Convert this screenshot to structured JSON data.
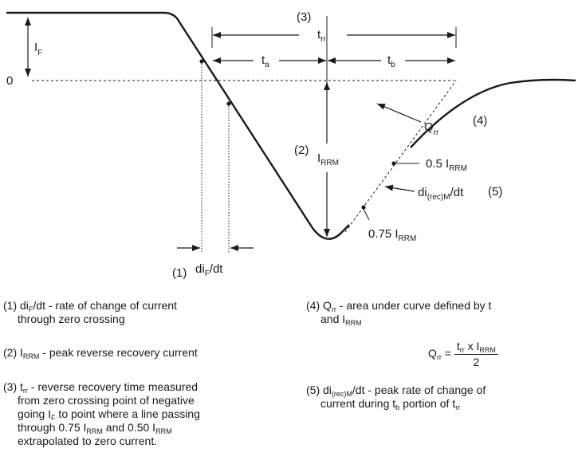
{
  "labels": {
    "i": "I",
    "f": "F",
    "zero": "0",
    "n3": "(3)",
    "t": "t",
    "rr": "rr",
    "a": "a",
    "b": "b",
    "n2": "(2)",
    "rrm": "RRM",
    "n4": "(4)",
    "q": "Q",
    "pt5": "0.5 I",
    "pt75": "0.75 I",
    "di": "di",
    "recm": "(rec)M",
    "dt": "/dt",
    "n5": "(5)",
    "n1": "(1)"
  },
  "legend": {
    "item1": {
      "num": "(1) ",
      "di": "di",
      "f": "F",
      "rest": "/dt - rate of change of current",
      "line2": "through zero crossing"
    },
    "item2": {
      "num": "(2) ",
      "i": "I",
      "rrm": "RRM",
      "rest": " - peak reverse recovery current"
    },
    "item3": {
      "num": "(3) ",
      "t": "t",
      "rr": "rr",
      "rest": " - reverse recovery time measured",
      "line2": "from zero crossing point of negative",
      "line3a": "going I",
      "f": "F",
      "line3b": " to point where a line passing",
      "line4a": "through 0.75 I",
      "rrm": "RRM",
      "line4b": " and 0.50 I",
      "line5": "extrapolated to zero current."
    },
    "item4": {
      "num": "(4) ",
      "q": "Q",
      "rr": "rr",
      "rest": " - area under curve defined by t",
      "line2a": "and I",
      "rrm": "RRM"
    },
    "formula": {
      "q": "Q",
      "rr": "rr",
      "eq": " = ",
      "t": "t",
      "x": " x I",
      "rrm": "RRM",
      "den": "2"
    },
    "item5": {
      "num": "(5) ",
      "di": "di",
      "recm": "(rec)M",
      "rest": "/dt - peak rate of change of",
      "line2a": "current during t",
      "b": "b",
      "line2b": " portion of t",
      "rr": "rr"
    }
  }
}
